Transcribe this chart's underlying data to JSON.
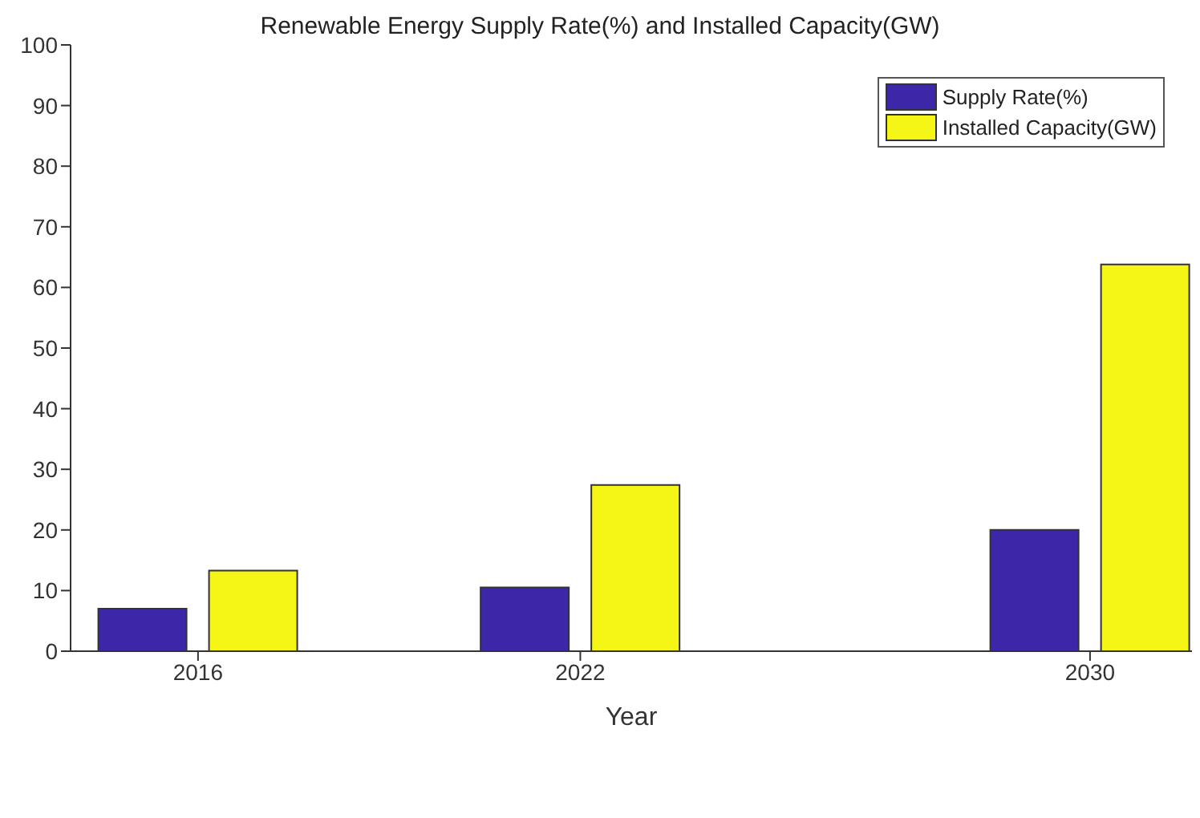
{
  "chart_data": {
    "type": "bar",
    "title": "Renewable Energy Supply Rate(%) and Installed Capacity(GW)",
    "xlabel": "Year",
    "x": [
      2016,
      2022,
      2030
    ],
    "xlim": [
      2014,
      2031.6
    ],
    "xticks": [
      2016,
      2022,
      2030
    ],
    "ylim": [
      0,
      100
    ],
    "yticks": [
      0,
      10,
      20,
      30,
      40,
      50,
      60,
      70,
      80,
      90,
      100
    ],
    "series": [
      {
        "name": "Supply Rate(%)",
        "color": "#3d27a8",
        "values": [
          7,
          10.5,
          20
        ]
      },
      {
        "name": "Installed Capacity(GW)",
        "color": "#f5f516",
        "values": [
          13.3,
          27.4,
          63.8
        ]
      }
    ],
    "legend": "top right",
    "grid": false
  }
}
